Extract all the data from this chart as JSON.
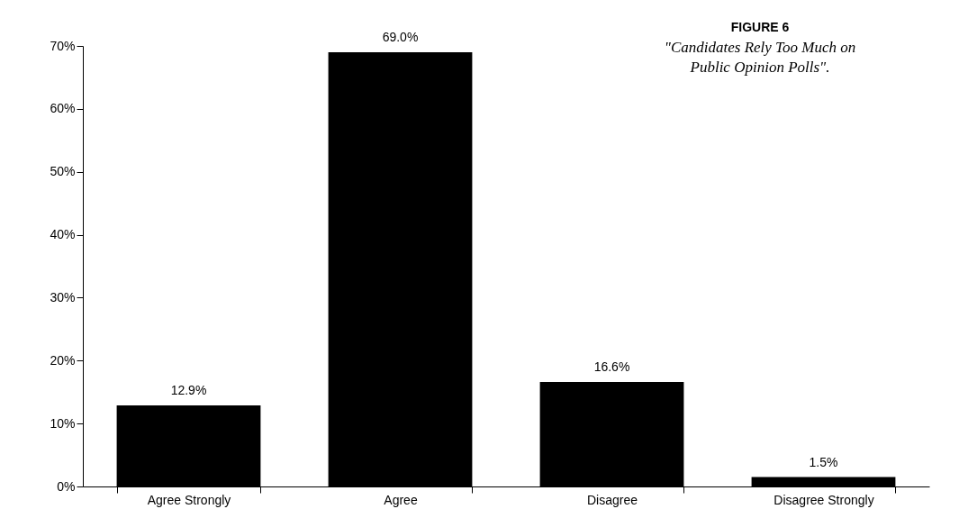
{
  "chart_data": {
    "type": "bar",
    "title": "FIGURE 6",
    "subtitle": "\"Candidates Rely Too Much on\nPublic Opinion Polls\".",
    "categories": [
      "Agree Strongly",
      "Agree",
      "Disagree",
      "Disagree Strongly"
    ],
    "values": [
      12.9,
      69.0,
      16.6,
      1.5
    ],
    "value_labels": [
      "12.9%",
      "69.0%",
      "16.6%",
      "1.5%"
    ],
    "color": "#000000",
    "ylim": [
      0,
      70
    ],
    "yticks": [
      {
        "value": 0,
        "label": "0%"
      },
      {
        "value": 10,
        "label": "10%"
      },
      {
        "value": 20,
        "label": "20%"
      },
      {
        "value": 30,
        "label": "30%"
      },
      {
        "value": 40,
        "label": "40%"
      },
      {
        "value": 50,
        "label": "50%"
      },
      {
        "value": 60,
        "label": "60%"
      },
      {
        "value": 70,
        "label": "70%"
      }
    ],
    "grid": false
  }
}
